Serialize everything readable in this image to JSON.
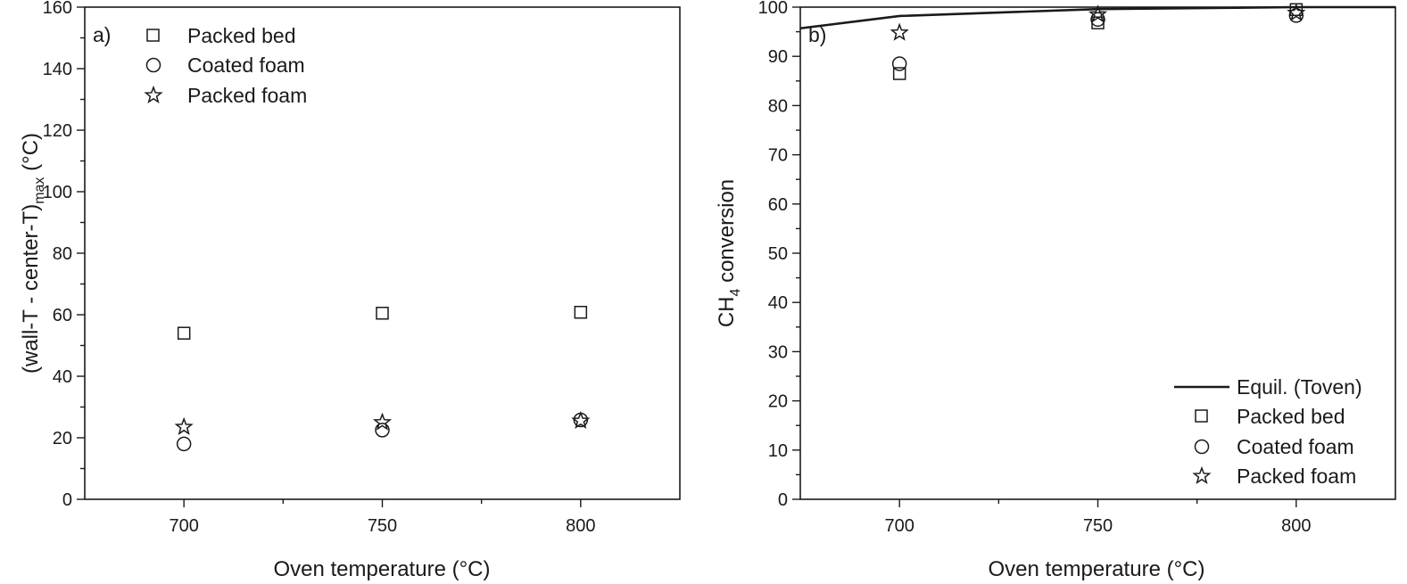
{
  "chart_data": [
    {
      "type": "scatter",
      "panel_label": "a)",
      "xlabel": "Oven temperature (°C)",
      "ylabel": "(wall-T - center-T)",
      "ylabel_sub": "max",
      "ylabel_unit": " (°C)",
      "xlim": [
        675,
        825
      ],
      "ylim": [
        0,
        160
      ],
      "xticks": [
        700,
        750,
        800
      ],
      "xminor": [
        725,
        775
      ],
      "yticks": [
        0,
        20,
        40,
        60,
        80,
        100,
        120,
        140,
        160
      ],
      "yminor": [
        10,
        30,
        50,
        70,
        90,
        110,
        130,
        150
      ],
      "legend_position": "top-left",
      "series": [
        {
          "name": "Packed bed",
          "marker": "square",
          "x": [
            700,
            750,
            800
          ],
          "values": [
            54,
            60.5,
            60.8
          ]
        },
        {
          "name": "Coated foam",
          "marker": "circle",
          "x": [
            700,
            750,
            800
          ],
          "values": [
            18,
            22.5,
            25.8
          ]
        },
        {
          "name": "Packed foam",
          "marker": "star",
          "x": [
            700,
            750,
            800
          ],
          "values": [
            23.5,
            25,
            25.5
          ]
        }
      ]
    },
    {
      "type": "scatter",
      "panel_label": "b)",
      "xlabel": "Oven temperature (°C)",
      "ylabel": "CH",
      "ylabel_sub": "4",
      "ylabel_unit": " conversion",
      "xlim": [
        675,
        825
      ],
      "ylim": [
        0,
        100
      ],
      "xticks": [
        700,
        750,
        800
      ],
      "xminor": [
        725,
        775
      ],
      "yticks": [
        0,
        10,
        20,
        30,
        40,
        50,
        60,
        70,
        80,
        90,
        100
      ],
      "yminor": [
        5,
        15,
        25,
        35,
        45,
        55,
        65,
        75,
        85,
        95
      ],
      "legend_position": "bottom-right",
      "series": [
        {
          "name": "Equil. (Toven)",
          "marker": "line",
          "x": [
            675,
            700,
            750,
            800,
            825
          ],
          "values": [
            95.7,
            98.2,
            99.6,
            100,
            100
          ]
        },
        {
          "name": "Packed bed",
          "marker": "square",
          "x": [
            700,
            750,
            800
          ],
          "values": [
            86.5,
            96.8,
            99.5
          ]
        },
        {
          "name": "Coated foam",
          "marker": "circle",
          "x": [
            700,
            750,
            800
          ],
          "values": [
            88.5,
            97.5,
            98.3
          ]
        },
        {
          "name": "Packed foam",
          "marker": "star",
          "x": [
            700,
            750,
            800
          ],
          "values": [
            94.8,
            98.5,
            98.8
          ]
        }
      ]
    }
  ]
}
